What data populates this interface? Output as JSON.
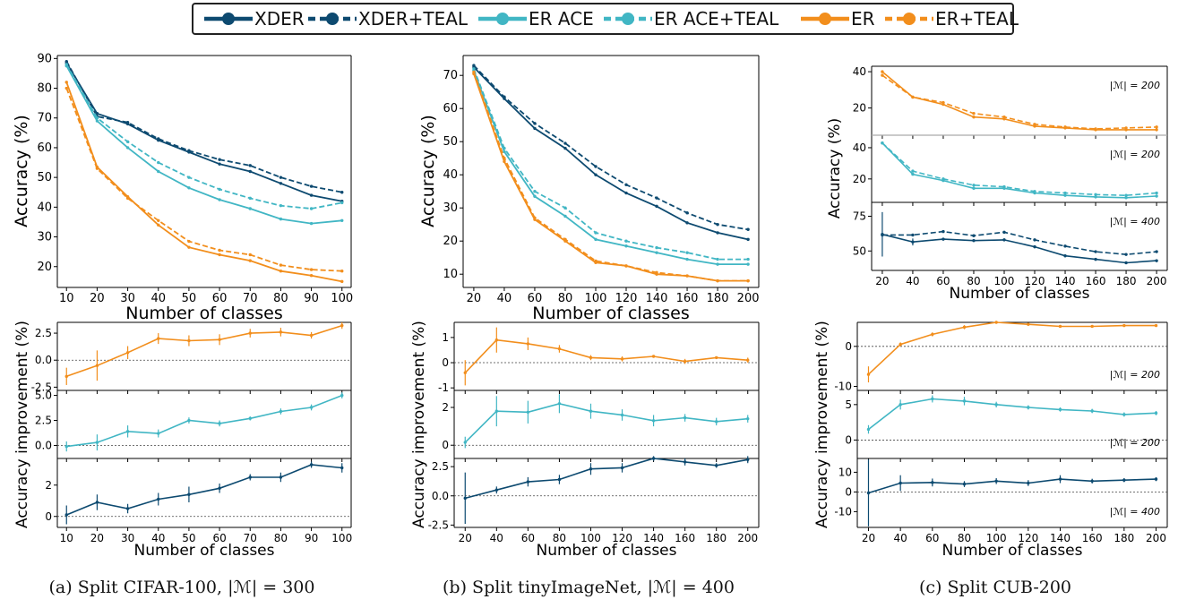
{
  "legend": {
    "items": [
      {
        "label": "XDER",
        "color": "#0d4a70",
        "dashed": false
      },
      {
        "label": "XDER+TEAL",
        "color": "#0d4a70",
        "dashed": true
      },
      {
        "label": "ER ACE",
        "color": "#41b6c4",
        "dashed": false
      },
      {
        "label": "ER ACE+TEAL",
        "color": "#41b6c4",
        "dashed": true
      },
      {
        "label": "ER",
        "color": "#f28e1c",
        "dashed": false
      },
      {
        "label": "ER+TEAL",
        "color": "#f28e1c",
        "dashed": true
      }
    ]
  },
  "captions": {
    "a": {
      "prefix": "(a) Split CIFAR-100, ",
      "memory": "|ℳ| = 300"
    },
    "b": {
      "prefix": "(b) Split tinyImageNet, ",
      "memory": "|ℳ| = 400"
    },
    "c": {
      "prefix": "(c) Split CUB-200",
      "memory": ""
    }
  },
  "colors": {
    "xder": "#0d4a70",
    "erace": "#41b6c4",
    "er": "#f28e1c"
  },
  "chart_data": [
    {
      "type": "line",
      "panel": "a-top",
      "xlabel": "Number of classes",
      "ylabel": "Accuracy (%)",
      "x": [
        10,
        20,
        30,
        40,
        50,
        60,
        70,
        80,
        90,
        100
      ],
      "xlim": [
        7,
        103
      ],
      "ylim": [
        13,
        91
      ],
      "xticks": [
        10,
        20,
        30,
        40,
        50,
        60,
        70,
        80,
        90,
        100
      ],
      "yticks": [
        20,
        30,
        40,
        50,
        60,
        70,
        80,
        90
      ],
      "series": [
        {
          "name": "XDER",
          "color": "xder",
          "dashed": false,
          "values": [
            88.5,
            71.5,
            68,
            62.5,
            58.5,
            54.5,
            52,
            48,
            44,
            42
          ]
        },
        {
          "name": "XDER+TEAL",
          "color": "xder",
          "dashed": true,
          "values": [
            89,
            70.5,
            68.5,
            63,
            59,
            56,
            54,
            50,
            47,
            45
          ]
        },
        {
          "name": "ER ACE",
          "color": "erace",
          "dashed": false,
          "values": [
            87.5,
            69,
            60,
            52,
            46.5,
            42.5,
            39.5,
            36,
            34.5,
            35.5
          ]
        },
        {
          "name": "ER ACE+TEAL",
          "color": "erace",
          "dashed": true,
          "values": [
            88,
            70,
            62,
            55,
            50,
            46,
            43,
            40.5,
            39.5,
            41.5
          ]
        },
        {
          "name": "ER",
          "color": "er",
          "dashed": false,
          "values": [
            82,
            53.5,
            43.5,
            34,
            26.5,
            24,
            22,
            18.5,
            17,
            15
          ]
        },
        {
          "name": "ER+TEAL",
          "color": "er",
          "dashed": true,
          "values": [
            80,
            53,
            43,
            35.5,
            28.5,
            25.5,
            24,
            20.5,
            19,
            18.5
          ]
        }
      ]
    },
    {
      "type": "line",
      "panel": "b-top",
      "xlabel": "Number of classes",
      "ylabel": "Accuracy (%)",
      "x": [
        20,
        40,
        60,
        80,
        100,
        120,
        140,
        160,
        180,
        200
      ],
      "xlim": [
        13,
        207
      ],
      "ylim": [
        6,
        76
      ],
      "xticks": [
        20,
        40,
        60,
        80,
        100,
        120,
        140,
        160,
        180,
        200
      ],
      "yticks": [
        10,
        20,
        30,
        40,
        50,
        60,
        70
      ],
      "series": [
        {
          "name": "XDER",
          "color": "xder",
          "dashed": false,
          "values": [
            72.5,
            63,
            54,
            48,
            40,
            34.5,
            30.5,
            25.5,
            22.5,
            20.5
          ]
        },
        {
          "name": "XDER+TEAL",
          "color": "xder",
          "dashed": true,
          "values": [
            73,
            63.5,
            55.5,
            49.5,
            42.5,
            37,
            33,
            28.5,
            25,
            23.5
          ]
        },
        {
          "name": "ER ACE",
          "color": "erace",
          "dashed": false,
          "values": [
            71.5,
            47,
            33.5,
            27.5,
            20.5,
            18.5,
            16.5,
            14.5,
            13,
            13
          ]
        },
        {
          "name": "ER ACE+TEAL",
          "color": "erace",
          "dashed": true,
          "values": [
            72,
            48,
            35,
            30,
            22.5,
            20,
            18,
            16.5,
            14.5,
            14.5
          ]
        },
        {
          "name": "ER",
          "color": "er",
          "dashed": false,
          "values": [
            70.5,
            44,
            26.5,
            20,
            13.5,
            12.5,
            10,
            9.5,
            8,
            8
          ]
        },
        {
          "name": "ER+TEAL",
          "color": "er",
          "dashed": true,
          "values": [
            71,
            45,
            27,
            20.5,
            14,
            12.5,
            10.5,
            9.5,
            8,
            8
          ]
        }
      ]
    },
    {
      "type": "line",
      "panel": "c-top-1",
      "ylabel": "Accuracy (%)",
      "memory_label": "|ℳ| = 200",
      "x": [
        20,
        40,
        60,
        80,
        100,
        120,
        140,
        160,
        180,
        200
      ],
      "xlim": [
        13,
        207
      ],
      "ylim": [
        5,
        43
      ],
      "yticks": [
        20,
        40
      ],
      "series": [
        {
          "name": "ER",
          "color": "er",
          "dashed": false,
          "values": [
            40,
            26,
            22,
            15,
            14,
            10,
            9,
            8,
            8,
            8
          ]
        },
        {
          "name": "ER+TEAL",
          "color": "er",
          "dashed": true,
          "values": [
            38,
            26,
            23,
            17,
            15,
            11,
            9.5,
            8.5,
            9,
            9.5
          ]
        }
      ]
    },
    {
      "type": "line",
      "panel": "c-top-2",
      "memory_label": "|ℳ| = 200",
      "x": [
        20,
        40,
        60,
        80,
        100,
        120,
        140,
        160,
        180,
        200
      ],
      "xlim": [
        13,
        207
      ],
      "ylim": [
        5,
        48
      ],
      "yticks": [
        20,
        40
      ],
      "series": [
        {
          "name": "ER ACE",
          "color": "erace",
          "dashed": false,
          "values": [
            43,
            23,
            19,
            14,
            14,
            11,
            9.5,
            8.5,
            8,
            9
          ]
        },
        {
          "name": "ER ACE+TEAL",
          "color": "erace",
          "dashed": true,
          "values": [
            43,
            25,
            20,
            16,
            15,
            12,
            11,
            10,
            9.5,
            11
          ]
        }
      ]
    },
    {
      "type": "line",
      "panel": "c-top-3",
      "memory_label": "|ℳ| = 400",
      "xlabel": "Number of classes",
      "x": [
        20,
        40,
        60,
        80,
        100,
        120,
        140,
        160,
        180,
        200
      ],
      "xlim": [
        13,
        207
      ],
      "ylim": [
        36,
        85
      ],
      "yticks": [
        50,
        75
      ],
      "xticks": [
        20,
        40,
        60,
        80,
        100,
        120,
        140,
        160,
        180,
        200
      ],
      "series": [
        {
          "name": "XDER",
          "color": "xder",
          "dashed": false,
          "values": [
            62,
            56.5,
            58.5,
            57.5,
            58,
            53,
            46.5,
            44,
            41.5,
            43
          ],
          "err": [
            16,
            2.5,
            1,
            1,
            1,
            1,
            1,
            1,
            1,
            1
          ]
        },
        {
          "name": "XDER+TEAL",
          "color": "xder",
          "dashed": true,
          "values": [
            61.5,
            61.5,
            64,
            61,
            63.5,
            58,
            53.5,
            49.5,
            47.5,
            49.5
          ]
        }
      ]
    },
    {
      "type": "line",
      "panel": "a-bottom-1",
      "ylabel": "Accuracy improvement (%)",
      "x": [
        10,
        20,
        30,
        40,
        50,
        60,
        70,
        80,
        90,
        100
      ],
      "xlim": [
        7,
        103
      ],
      "ylim": [
        -2.8,
        3.5
      ],
      "yticks": [
        -2.5,
        0.0,
        2.5
      ],
      "series": [
        {
          "name": "ER",
          "color": "er",
          "values": [
            -1.5,
            -0.5,
            0.7,
            2.0,
            1.8,
            1.9,
            2.5,
            2.6,
            2.3,
            3.2
          ],
          "err": [
            0.8,
            1.4,
            0.6,
            0.5,
            0.5,
            0.5,
            0.4,
            0.4,
            0.3,
            0.3
          ]
        }
      ]
    },
    {
      "type": "line",
      "panel": "a-bottom-2",
      "x": [
        10,
        20,
        30,
        40,
        50,
        60,
        70,
        80,
        90,
        100
      ],
      "xlim": [
        7,
        103
      ],
      "ylim": [
        -1.3,
        5.5
      ],
      "yticks": [
        0.0,
        2.5,
        5.0
      ],
      "series": [
        {
          "name": "ER ACE",
          "color": "erace",
          "values": [
            -0.1,
            0.3,
            1.4,
            1.2,
            2.5,
            2.2,
            2.7,
            3.4,
            3.8,
            5.0
          ],
          "err": [
            0.5,
            0.8,
            0.6,
            0.4,
            0.3,
            0.3,
            0.2,
            0.3,
            0.3,
            0.3
          ]
        }
      ]
    },
    {
      "type": "line",
      "panel": "a-bottom-3",
      "xlabel": "Number of classes",
      "x": [
        10,
        20,
        30,
        40,
        50,
        60,
        70,
        80,
        90,
        100
      ],
      "xlim": [
        7,
        103
      ],
      "ylim": [
        -0.7,
        3.7
      ],
      "yticks": [
        0,
        2
      ],
      "xticks": [
        10,
        20,
        30,
        40,
        50,
        60,
        70,
        80,
        90,
        100
      ],
      "series": [
        {
          "name": "XDER",
          "color": "xder",
          "values": [
            0.1,
            0.9,
            0.5,
            1.1,
            1.4,
            1.8,
            2.5,
            2.5,
            3.3,
            3.1
          ],
          "err": [
            0.6,
            0.5,
            0.3,
            0.4,
            0.5,
            0.3,
            0.2,
            0.3,
            0.2,
            0.3
          ]
        }
      ]
    },
    {
      "type": "line",
      "panel": "b-bottom-1",
      "ylabel": "Accuracy improvement (%)",
      "x": [
        20,
        40,
        60,
        80,
        100,
        120,
        140,
        160,
        180,
        200
      ],
      "xlim": [
        13,
        207
      ],
      "ylim": [
        -1.1,
        1.6
      ],
      "yticks": [
        -1,
        0,
        1
      ],
      "series": [
        {
          "name": "ER",
          "color": "er",
          "values": [
            -0.4,
            0.9,
            0.75,
            0.55,
            0.2,
            0.15,
            0.25,
            0.05,
            0.2,
            0.1
          ],
          "err": [
            0.5,
            0.5,
            0.25,
            0.15,
            0.1,
            0.1,
            0.05,
            0.1,
            0.05,
            0.1
          ]
        }
      ]
    },
    {
      "type": "line",
      "panel": "b-bottom-2",
      "x": [
        20,
        40,
        60,
        80,
        100,
        120,
        140,
        160,
        180,
        200
      ],
      "xlim": [
        13,
        207
      ],
      "ylim": [
        -0.7,
        2.9
      ],
      "yticks": [
        0,
        2
      ],
      "series": [
        {
          "name": "ER ACE",
          "color": "erace",
          "values": [
            0.15,
            1.8,
            1.75,
            2.2,
            1.8,
            1.6,
            1.3,
            1.45,
            1.25,
            1.4
          ],
          "err": [
            0.3,
            0.8,
            0.6,
            0.5,
            0.4,
            0.3,
            0.3,
            0.2,
            0.2,
            0.2
          ]
        }
      ]
    },
    {
      "type": "line",
      "panel": "b-bottom-3",
      "xlabel": "Number of classes",
      "x": [
        20,
        40,
        60,
        80,
        100,
        120,
        140,
        160,
        180,
        200
      ],
      "xlim": [
        13,
        207
      ],
      "ylim": [
        -2.7,
        3.2
      ],
      "yticks": [
        -2.5,
        0.0,
        2.5
      ],
      "xticks": [
        20,
        40,
        60,
        80,
        100,
        120,
        140,
        160,
        180,
        200
      ],
      "series": [
        {
          "name": "XDER",
          "color": "xder",
          "values": [
            -0.2,
            0.5,
            1.2,
            1.4,
            2.3,
            2.4,
            3.2,
            2.9,
            2.6,
            3.1
          ],
          "err": [
            2.2,
            0.3,
            0.4,
            0.4,
            0.5,
            0.4,
            0.2,
            0.3,
            0.2,
            0.3
          ]
        }
      ]
    },
    {
      "type": "line",
      "panel": "c-bottom-1",
      "ylabel": "Accuracy improvement (%)",
      "memory_label": "|ℳ| = 200",
      "x": [
        20,
        40,
        60,
        80,
        100,
        120,
        140,
        160,
        180,
        200
      ],
      "xlim": [
        13,
        207
      ],
      "ylim": [
        -11,
        6
      ],
      "yticks": [
        -10,
        0
      ],
      "series": [
        {
          "name": "ER",
          "color": "er",
          "values": [
            -7,
            0.5,
            3,
            4.8,
            6,
            5.5,
            5,
            5,
            5.2,
            5.2
          ],
          "err": [
            2,
            0.5,
            0.5,
            0.5,
            0.3,
            0.3,
            0.3,
            0.2,
            0.2,
            0.2
          ]
        }
      ]
    },
    {
      "type": "line",
      "panel": "c-bottom-2",
      "memory_label": "|ℳ| = 200",
      "x": [
        20,
        40,
        60,
        80,
        100,
        120,
        140,
        160,
        180,
        200
      ],
      "xlim": [
        13,
        207
      ],
      "ylim": [
        -2.6,
        7
      ],
      "yticks": [
        0,
        5
      ],
      "series": [
        {
          "name": "ER ACE",
          "color": "erace",
          "values": [
            1.5,
            5,
            5.8,
            5.5,
            5,
            4.6,
            4.3,
            4.1,
            3.6,
            3.8
          ],
          "err": [
            0.6,
            0.7,
            0.5,
            0.6,
            0.4,
            0.3,
            0.3,
            0.3,
            0.3,
            0.3
          ]
        }
      ]
    },
    {
      "type": "line",
      "panel": "c-bottom-3",
      "memory_label": "|ℳ| = 400",
      "xlabel": "Number of classes",
      "x": [
        20,
        40,
        60,
        80,
        100,
        120,
        140,
        160,
        180,
        200
      ],
      "xlim": [
        13,
        207
      ],
      "ylim": [
        -18,
        17
      ],
      "yticks": [
        -10,
        0,
        10
      ],
      "xticks": [
        20,
        40,
        60,
        80,
        100,
        120,
        140,
        160,
        180,
        200
      ],
      "series": [
        {
          "name": "XDER",
          "color": "xder",
          "values": [
            -0.5,
            4.5,
            4.8,
            4,
            5.5,
            4.5,
            6.5,
            5.5,
            6,
            6.5
          ],
          "err": [
            17,
            4,
            2,
            1.5,
            1.5,
            1.5,
            2,
            1.2,
            1,
            1
          ]
        }
      ]
    }
  ]
}
